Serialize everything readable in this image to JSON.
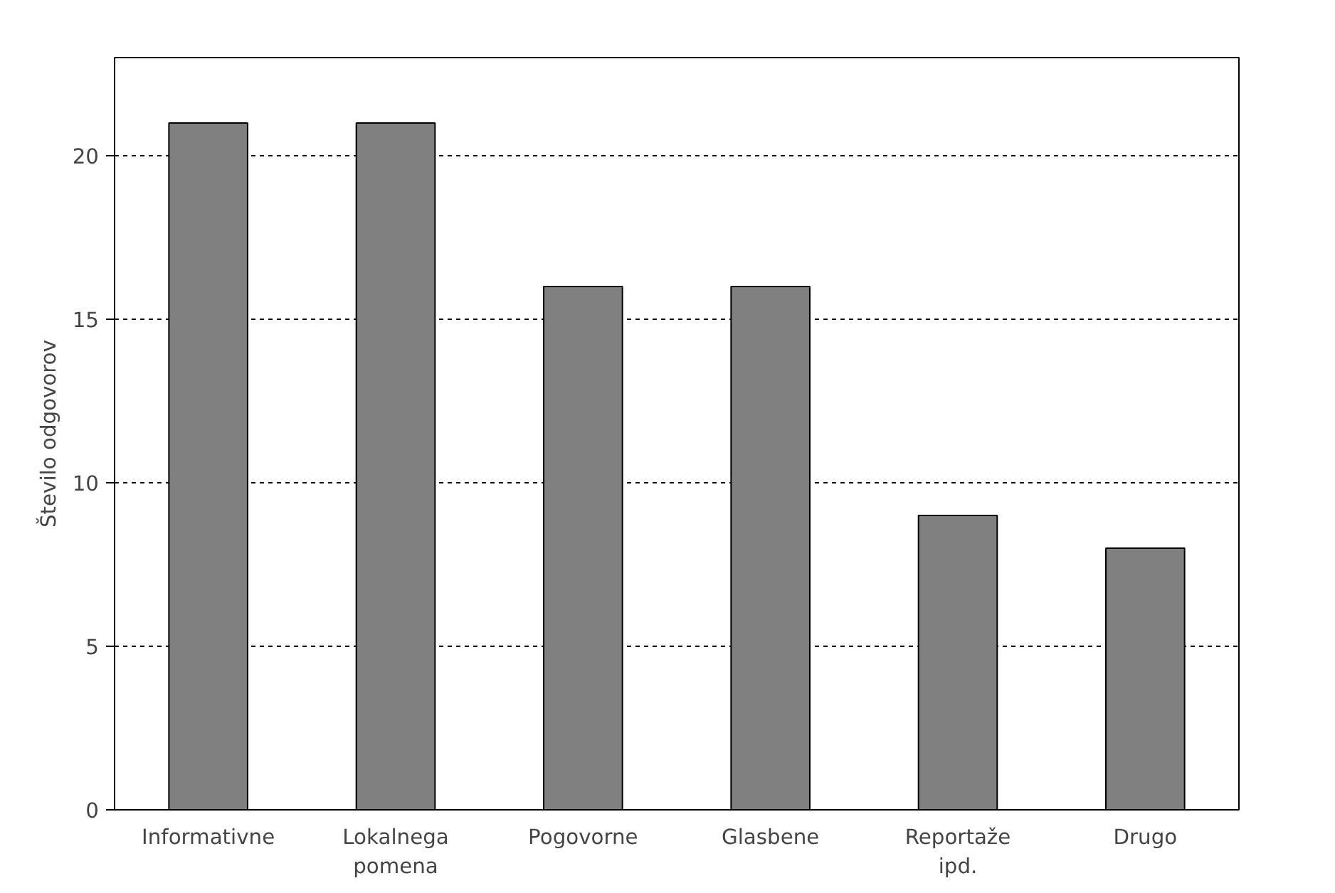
{
  "chart_data": {
    "type": "bar",
    "ylabel": "Število odgovorov",
    "categories": [
      "Informativne",
      "Lokalnega pomena",
      "Pogovorne",
      "Glasbene",
      "Reportaže ipd.",
      "Drugo"
    ],
    "values": [
      21,
      21,
      16,
      16,
      9,
      8
    ],
    "color": "#808080",
    "ylim": [
      0,
      23
    ],
    "yticks": [
      0,
      5,
      10,
      15,
      20
    ],
    "grid": "y"
  }
}
